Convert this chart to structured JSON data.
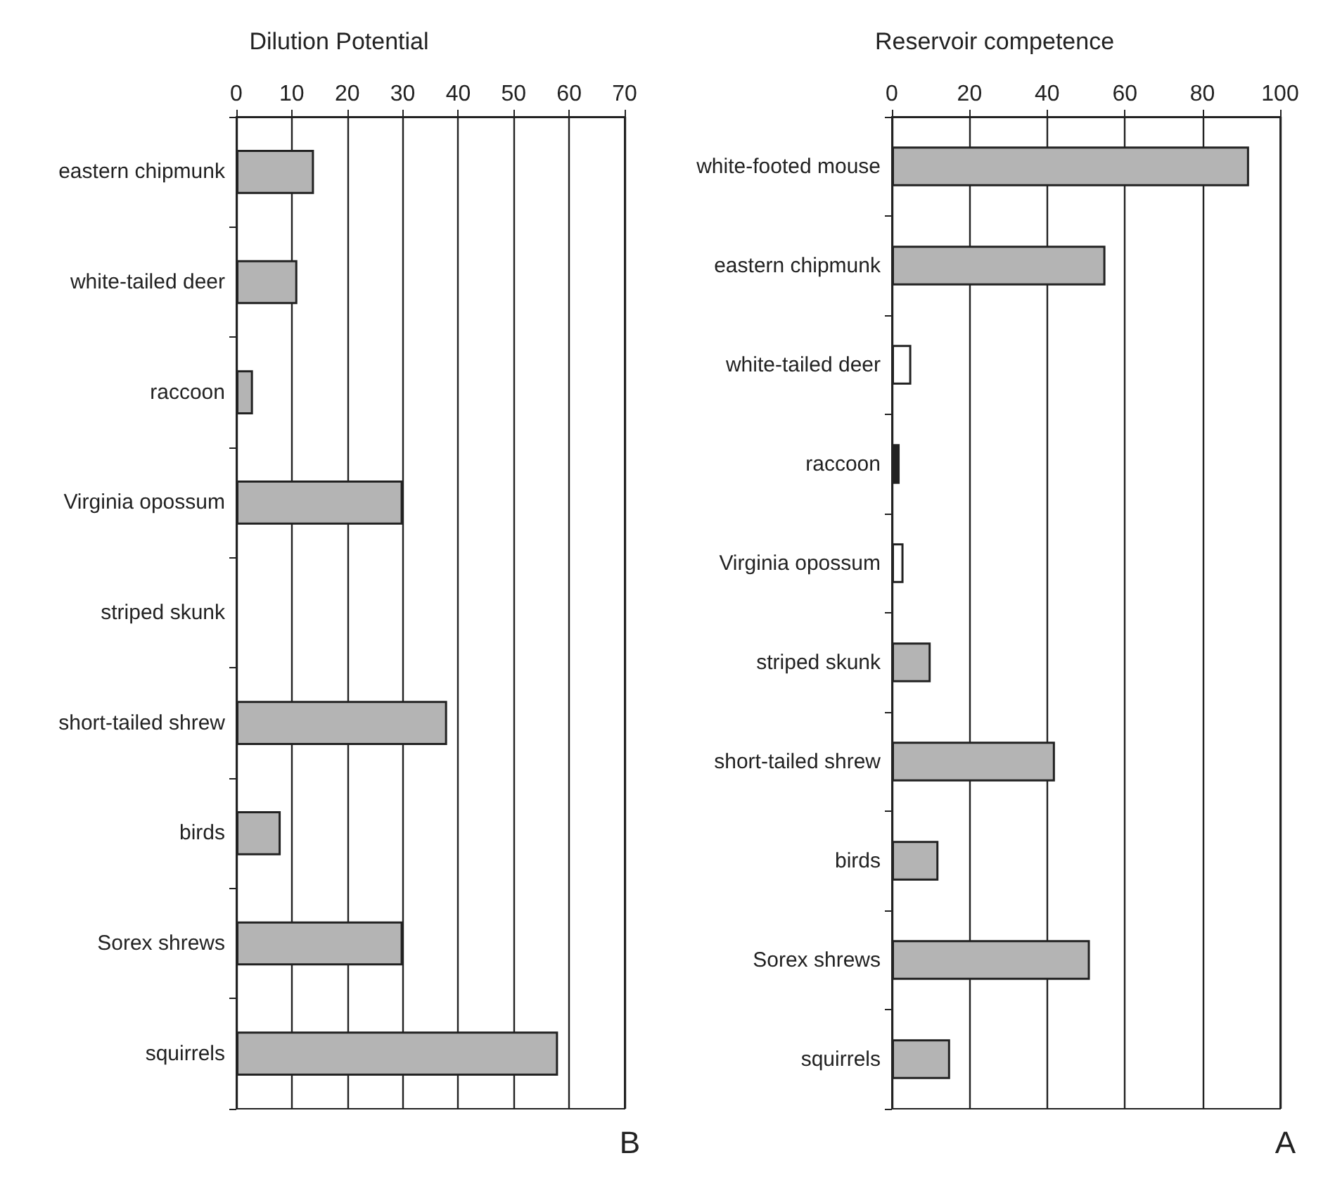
{
  "chart_data": [
    {
      "type": "bar",
      "orientation": "horizontal",
      "title": "Reservoir competence",
      "annotations": [
        "A"
      ],
      "categories": [
        "white-footed mouse",
        "eastern chipmunk",
        "white-tailed deer",
        "raccoon",
        "Virginia opossum",
        "striped skunk",
        "short-tailed shrew",
        "birds",
        "Sorex shrews",
        "squirrels"
      ],
      "values": [
        92,
        55,
        5,
        2,
        3,
        10,
        42,
        12,
        51,
        15
      ],
      "colors": [
        "#b4b4b4",
        "#b4b4b4",
        "#ffffff",
        "#222222",
        "#ffffff",
        "#b4b4b4",
        "#b4b4b4",
        "#b4b4b4",
        "#b4b4b4",
        "#b4b4b4"
      ],
      "xlim": [
        0,
        100
      ],
      "xticks": [
        0,
        20,
        40,
        60,
        80,
        100
      ],
      "grid": "x"
    },
    {
      "type": "bar",
      "orientation": "horizontal",
      "title": "Dilution Potential",
      "annotations": [
        "B"
      ],
      "categories": [
        "eastern chipmunk",
        "white-tailed deer",
        "raccoon",
        "Virginia opossum",
        "striped skunk",
        "short-tailed shrew",
        "birds",
        "Sorex shrews",
        "squirrels"
      ],
      "values": [
        14,
        11,
        3,
        30,
        null,
        38,
        8,
        30,
        58
      ],
      "color": "#b4b4b4",
      "xlim": [
        0,
        70
      ],
      "xticks": [
        0,
        10,
        20,
        30,
        40,
        50,
        60,
        70
      ],
      "grid": "x"
    }
  ]
}
